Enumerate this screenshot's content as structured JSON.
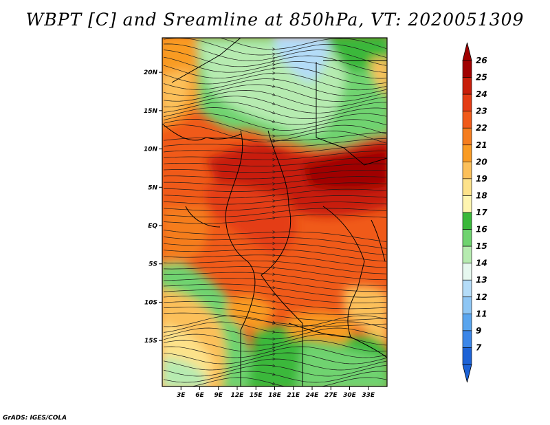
{
  "title": "WBPT [C] and Sreamline at 850hPa, VT: 2020051309",
  "credit": "GrADS: IGES/COLA",
  "map": {
    "variable": "WBPT [C] and Streamline",
    "level": "850hPa",
    "lat_range": [
      -21,
      24.5
    ],
    "lon_range": [
      0,
      36
    ],
    "lat_ticks": [
      {
        "value": 20,
        "label": "20N"
      },
      {
        "value": 15,
        "label": "15N"
      },
      {
        "value": 10,
        "label": "10N"
      },
      {
        "value": 5,
        "label": "5N"
      },
      {
        "value": 0,
        "label": "EQ"
      },
      {
        "value": -5,
        "label": "5S"
      },
      {
        "value": -10,
        "label": "10S"
      },
      {
        "value": -15,
        "label": "15S"
      }
    ],
    "lon_ticks": [
      {
        "value": 3,
        "label": "3E"
      },
      {
        "value": 6,
        "label": "6E"
      },
      {
        "value": 9,
        "label": "9E"
      },
      {
        "value": 12,
        "label": "12E"
      },
      {
        "value": 15,
        "label": "15E"
      },
      {
        "value": 18,
        "label": "18E"
      },
      {
        "value": 21,
        "label": "21E"
      },
      {
        "value": 24,
        "label": "24E"
      },
      {
        "value": 27,
        "label": "27E"
      },
      {
        "value": 30,
        "label": "30E"
      },
      {
        "value": 33,
        "label": "33E"
      }
    ]
  },
  "colorbar": {
    "levels": [
      {
        "label": "26",
        "color": "#a00000"
      },
      {
        "label": "25",
        "color": "#c81e0a"
      },
      {
        "label": "24",
        "color": "#e43c14"
      },
      {
        "label": "23",
        "color": "#f05a19"
      },
      {
        "label": "22",
        "color": "#f57d1e"
      },
      {
        "label": "21",
        "color": "#f99b23"
      },
      {
        "label": "20",
        "color": "#fcc05a"
      },
      {
        "label": "19",
        "color": "#fde28a"
      },
      {
        "label": "18",
        "color": "#fff5b0"
      },
      {
        "label": "17",
        "color": "#3ab83a"
      },
      {
        "label": "16",
        "color": "#6fd36f"
      },
      {
        "label": "15",
        "color": "#b6ebb0"
      },
      {
        "label": "14",
        "color": "#e6f8ef"
      },
      {
        "label": "13",
        "color": "#b4dcf8"
      },
      {
        "label": "12",
        "color": "#8ec6f4"
      },
      {
        "label": "11",
        "color": "#5aa5ee"
      },
      {
        "label": "9",
        "color": "#3b86e8"
      },
      {
        "label": "7",
        "color": "#1c62d6"
      }
    ],
    "over_color": "#a00000",
    "under_color": "#1c62d6"
  }
}
